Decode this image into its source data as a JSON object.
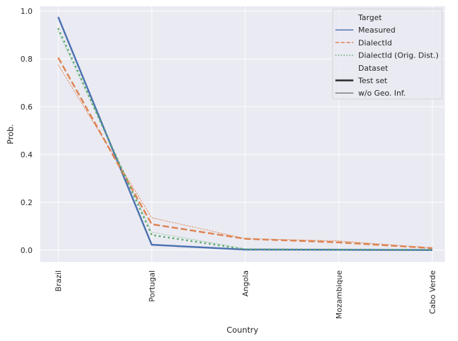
{
  "chart_data": {
    "type": "line",
    "xlabel": "Country",
    "ylabel": "Prob.",
    "categories": [
      "Brazil",
      "Portugal",
      "Angola",
      "Mozambique",
      "Cabo Verde"
    ],
    "ylim": [
      -0.05,
      1.02
    ],
    "yticks": [
      "0.0",
      "0.2",
      "0.4",
      "0.6",
      "0.8",
      "1.0"
    ],
    "grid": true,
    "legend_position": "top-right",
    "legend": {
      "hue_title": "Target",
      "style_title": "Dataset",
      "style_entries": [
        "Test set",
        "w/o Geo. Inf."
      ]
    },
    "series": [
      {
        "name": "Measured",
        "dataset": "Test set",
        "color": "#4c72b0",
        "dash": "solid",
        "values": [
          0.975,
          0.022,
          0.002,
          0.001,
          0.0
        ]
      },
      {
        "name": "DialectId",
        "dataset": "Test set",
        "color": "#dd8452",
        "dash": "dashed",
        "values": [
          0.805,
          0.108,
          0.047,
          0.032,
          0.008
        ]
      },
      {
        "name": "DialectId (Orig. Dist.)",
        "dataset": "Test set",
        "color": "#55a868",
        "dash": "dotted",
        "values": [
          0.928,
          0.063,
          0.003,
          0.002,
          0.001
        ]
      },
      {
        "name": "Measured",
        "dataset": "w/o Geo. Inf.",
        "color": "#4c72b0",
        "dash": "solid",
        "values": [
          0.975,
          0.022,
          0.002,
          0.001,
          0.0
        ]
      },
      {
        "name": "DialectId",
        "dataset": "w/o Geo. Inf.",
        "color": "#dd8452",
        "dash": "dashed",
        "values": [
          0.775,
          0.135,
          0.048,
          0.038,
          0.009
        ]
      },
      {
        "name": "DialectId (Orig. Dist.)",
        "dataset": "w/o Geo. Inf.",
        "color": "#55a868",
        "dash": "dotted",
        "values": [
          0.915,
          0.075,
          0.005,
          0.003,
          0.001
        ]
      }
    ]
  }
}
